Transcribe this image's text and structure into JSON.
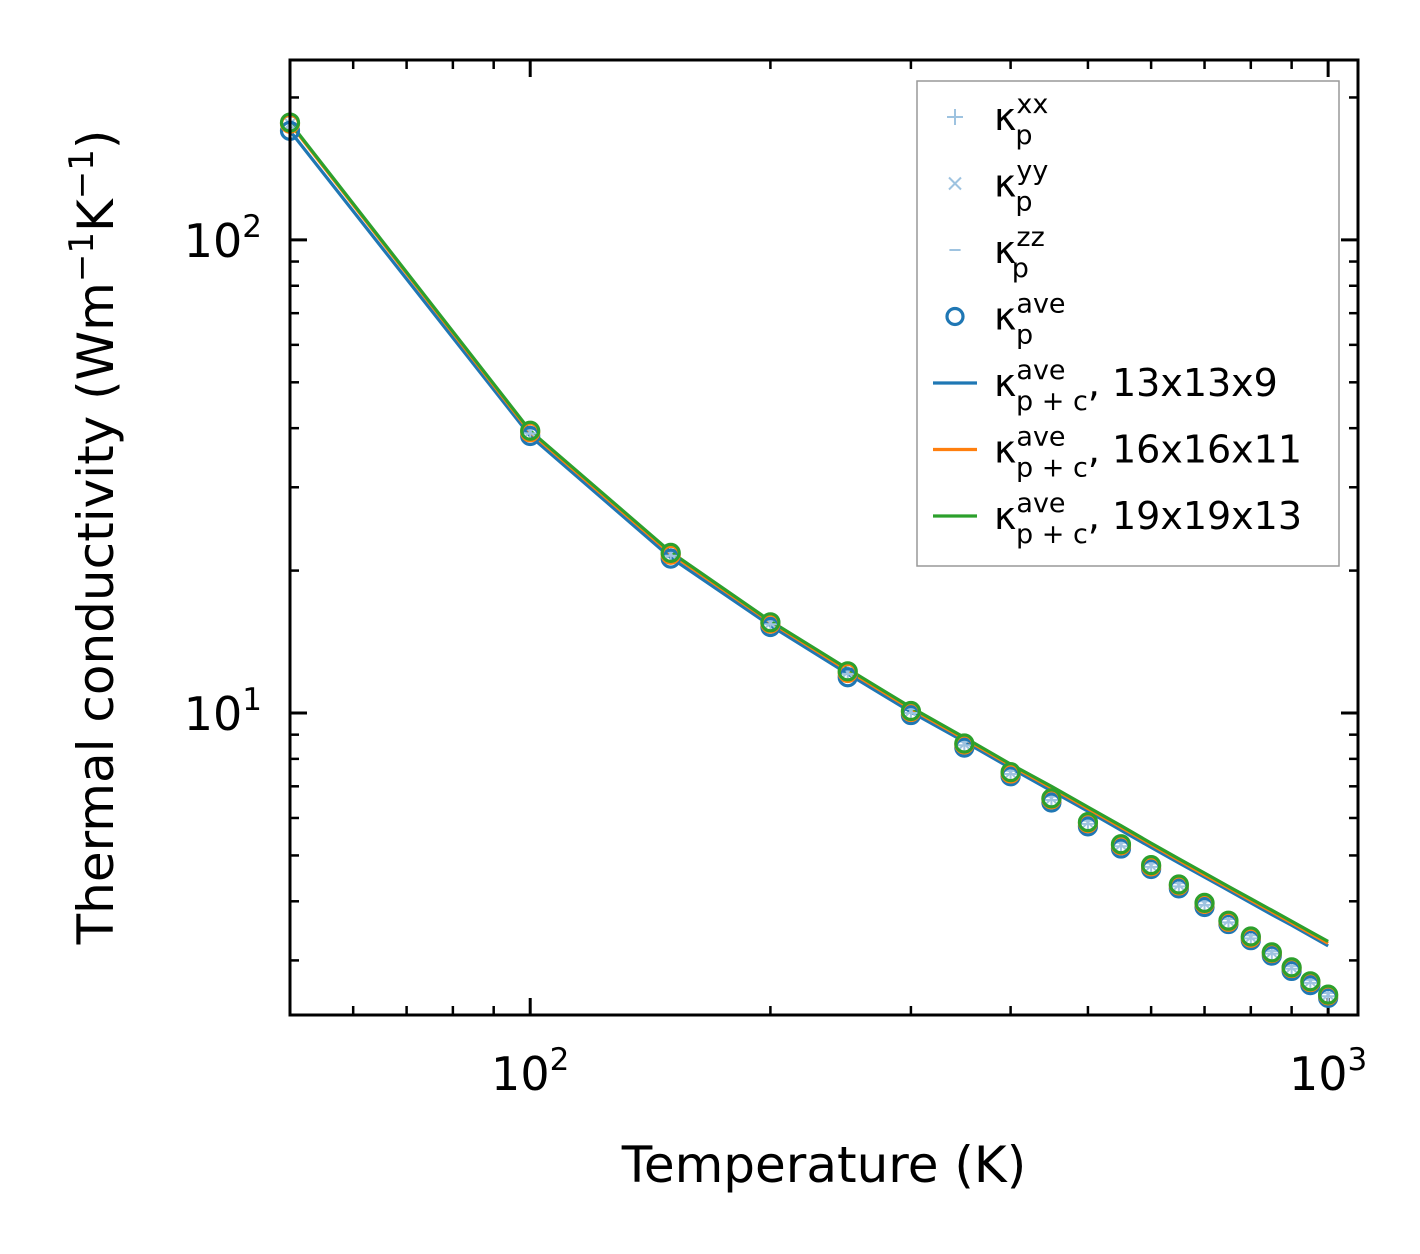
{
  "chart_data": {
    "type": "line",
    "scale": "log-log",
    "xlabel": "Temperature (K)",
    "ylabel": "Thermal conductivity (Wm⁻¹K⁻¹)",
    "ylabel_parts": {
      "pre": "Thermal conductivity (Wm",
      "sup1": "−1",
      "mid": "K",
      "sup2": "−1",
      "post": ")"
    },
    "xlim": [
      50,
      1090
    ],
    "ylim": [
      2.3,
      240
    ],
    "x_ticks": [
      {
        "value": 100,
        "base": "10",
        "exp": "2"
      },
      {
        "value": 1000,
        "base": "10",
        "exp": "3"
      }
    ],
    "y_ticks": [
      {
        "value": 10,
        "base": "10",
        "exp": "1"
      },
      {
        "value": 100,
        "base": "10",
        "exp": "2"
      }
    ],
    "temperatures": [
      50,
      100,
      150,
      200,
      250,
      300,
      350,
      400,
      450,
      500,
      550,
      600,
      650,
      700,
      750,
      800,
      850,
      900,
      950,
      1000
    ],
    "scatter_series": [
      {
        "name": "κp^xx",
        "marker": "plus",
        "color": "#9ec3e0",
        "values": [
          172,
          39.0,
          21.5,
          15.4,
          12.1,
          10.0,
          8.55,
          7.43,
          6.55,
          5.83,
          5.23,
          4.73,
          4.3,
          3.93,
          3.61,
          3.34,
          3.1,
          2.88,
          2.69,
          2.52
        ]
      },
      {
        "name": "κp^yy",
        "marker": "x",
        "color": "#9ec3e0",
        "values": [
          176,
          39.3,
          21.7,
          15.5,
          12.2,
          10.1,
          8.6,
          7.48,
          6.6,
          5.87,
          5.27,
          4.76,
          4.33,
          3.96,
          3.64,
          3.36,
          3.12,
          2.9,
          2.71,
          2.54
        ]
      },
      {
        "name": "κp^zz",
        "marker": "dash",
        "color": "#9ec3e0",
        "values": [
          182,
          39.8,
          22.0,
          15.7,
          12.35,
          10.2,
          8.7,
          7.55,
          6.66,
          5.92,
          5.32,
          4.81,
          4.37,
          4.0,
          3.67,
          3.39,
          3.14,
          2.92,
          2.73,
          2.56
        ]
      },
      {
        "name": "κp^ave (13x13x9)",
        "marker": "circle",
        "color": "#1f77b4",
        "values": [
          170,
          38.5,
          21.2,
          15.2,
          11.9,
          9.9,
          8.45,
          7.35,
          6.47,
          5.76,
          5.17,
          4.68,
          4.26,
          3.89,
          3.58,
          3.31,
          3.07,
          2.85,
          2.66,
          2.5
        ]
      },
      {
        "name": "κp^ave (16x16x11)",
        "marker": "circle",
        "color": "#ff7f0e",
        "values": [
          176,
          39.2,
          21.6,
          15.45,
          12.15,
          10.05,
          8.58,
          7.45,
          6.57,
          5.85,
          5.25,
          4.74,
          4.32,
          3.95,
          3.62,
          3.35,
          3.11,
          2.89,
          2.7,
          2.53
        ]
      },
      {
        "name": "κp^ave (19x19x13)",
        "marker": "circle",
        "color": "#2ca02c",
        "values": [
          177,
          39.5,
          21.8,
          15.55,
          12.25,
          10.1,
          8.62,
          7.5,
          6.6,
          5.88,
          5.28,
          4.77,
          4.34,
          3.97,
          3.64,
          3.37,
          3.12,
          2.9,
          2.71,
          2.54
        ]
      }
    ],
    "line_series": [
      {
        "name": "κp+c^ave, 13x13x9",
        "color": "#1f77b4",
        "values": [
          170,
          38.5,
          21.3,
          15.3,
          12.1,
          10.05,
          8.7,
          7.65,
          6.85,
          6.2,
          5.65,
          5.2,
          4.82,
          4.5,
          4.22,
          3.97,
          3.75,
          3.56,
          3.38,
          3.22
        ]
      },
      {
        "name": "κp+c^ave, 16x16x11",
        "color": "#ff7f0e",
        "values": [
          176,
          39.2,
          21.7,
          15.55,
          12.3,
          10.2,
          8.82,
          7.75,
          6.95,
          6.28,
          5.73,
          5.27,
          4.88,
          4.55,
          4.27,
          4.02,
          3.8,
          3.6,
          3.42,
          3.26
        ]
      },
      {
        "name": "κp+c^ave, 19x19x13",
        "color": "#2ca02c",
        "values": [
          177,
          39.5,
          21.9,
          15.65,
          12.4,
          10.28,
          8.88,
          7.8,
          7.0,
          6.33,
          5.78,
          5.31,
          4.92,
          4.59,
          4.3,
          4.05,
          3.83,
          3.63,
          3.45,
          3.29
        ]
      }
    ],
    "legend": {
      "placement": "top-right",
      "entries": [
        {
          "marker": "plus",
          "color": "#9ec3e0",
          "base": "κ",
          "sup": "xx",
          "sub": "p",
          "suffix": ""
        },
        {
          "marker": "x",
          "color": "#9ec3e0",
          "base": "κ",
          "sup": "yy",
          "sub": "p",
          "suffix": ""
        },
        {
          "marker": "dash",
          "color": "#9ec3e0",
          "base": "κ",
          "sup": "zz",
          "sub": "p",
          "suffix": ""
        },
        {
          "marker": "circle",
          "color": "#1f77b4",
          "base": "κ",
          "sup": "ave",
          "sub": "p",
          "suffix": ""
        },
        {
          "marker": "line",
          "color": "#1f77b4",
          "base": "κ",
          "sup": "ave",
          "sub": "p + c",
          "suffix": ", 13x13x9"
        },
        {
          "marker": "line",
          "color": "#ff7f0e",
          "base": "κ",
          "sup": "ave",
          "sub": "p + c",
          "suffix": ", 16x16x11"
        },
        {
          "marker": "line",
          "color": "#2ca02c",
          "base": "κ",
          "sup": "ave",
          "sub": "p + c",
          "suffix": ", 19x19x13"
        }
      ]
    }
  }
}
